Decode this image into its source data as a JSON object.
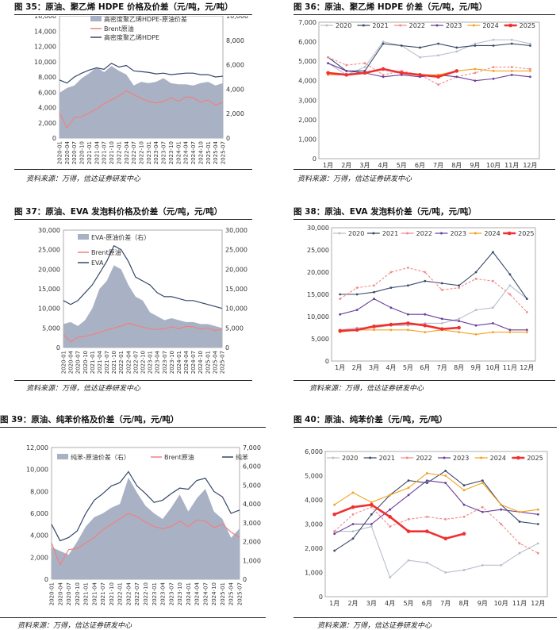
{
  "source_text": "资料来源：万得，信达证券研发中心",
  "months_series": [
    "2020-01",
    "2020-04",
    "2020-07",
    "2020-10",
    "2021-01",
    "2021-04",
    "2021-07",
    "2021-10",
    "2022-01",
    "2022-04",
    "2022-07",
    "2022-10",
    "2023-01",
    "2023-04",
    "2023-07",
    "2023-10",
    "2024-01",
    "2024-04",
    "2024-07",
    "2024-10",
    "2025-01",
    "2025-04",
    "2025-07"
  ],
  "month_labels": [
    "1月",
    "2月",
    "3月",
    "4月",
    "5月",
    "6月",
    "7月",
    "8月",
    "9月",
    "10月",
    "11月",
    "12月"
  ],
  "colors": {
    "y2020": "#b8bfcc",
    "y2021": "#3b4b6b",
    "y2022": "#f28a8a",
    "y2023": "#6a3d9a",
    "y2024": "#f5a020",
    "y2025": "#f03030",
    "area": "#a9b2c4",
    "brent": "#f08080",
    "line": "#34466a"
  },
  "chart_data": [
    {
      "id": "c35",
      "type": "area",
      "title": "图 35：原油、聚乙烯 HDPE 价格及价差（元/吨，元/吨）",
      "ylim": [
        0,
        16000
      ],
      "y2lim": [
        0,
        10000
      ],
      "left_ticks": [
        "0",
        "2,000",
        "4,000",
        "6,000",
        "8,000",
        "10,000",
        "12,000",
        "14,000",
        "16,000"
      ],
      "right_ticks": [
        "0",
        "2,000",
        "4,000",
        "6,000",
        "8,000",
        "10,000"
      ],
      "series": [
        {
          "name": "高密度聚乙烯HDPE-原油价差",
          "axis": "right",
          "kind": "area",
          "values": [
            3700,
            4100,
            4300,
            4900,
            5300,
            5800,
            5400,
            5900,
            5500,
            5200,
            4300,
            4600,
            4500,
            4600,
            4900,
            4500,
            4400,
            4400,
            4300,
            4500,
            4600,
            4300,
            4500
          ]
        },
        {
          "name": "Brent原油",
          "axis": "left",
          "kind": "line",
          "values": [
            3300,
            1300,
            2700,
            2800,
            3300,
            3800,
            4500,
            5000,
            5500,
            6200,
            5700,
            5200,
            4800,
            4600,
            4800,
            5300,
            4800,
            5400,
            5300,
            4700,
            5000,
            4300,
            4700
          ]
        },
        {
          "name": "高密度聚乙烯HDPE",
          "axis": "left",
          "kind": "line",
          "values": [
            7600,
            7200,
            8000,
            8500,
            8900,
            9200,
            9000,
            9800,
            9300,
            9500,
            8800,
            8700,
            8600,
            8400,
            8500,
            8300,
            8400,
            8500,
            8500,
            8300,
            8300,
            8000,
            8100
          ]
        }
      ]
    },
    {
      "id": "c36",
      "type": "line",
      "title": "图 36：原油、聚乙烯 HDPE 价差（元/吨，元/吨）",
      "ylim": [
        0,
        7000
      ],
      "ticks": [
        "0",
        "1,000",
        "2,000",
        "3,000",
        "4,000",
        "5,000",
        "6,000",
        "7,000"
      ],
      "series": [
        {
          "name": "2020",
          "values": [
            4900,
            4300,
            4700,
            6000,
            5800,
            5200,
            5300,
            5500,
            5900,
            6100,
            6100,
            5900
          ]
        },
        {
          "name": "2021",
          "values": [
            5200,
            4500,
            4500,
            5900,
            5800,
            5700,
            5900,
            5700,
            5800,
            5800,
            5900,
            5800
          ]
        },
        {
          "name": "2022",
          "values": [
            5200,
            4800,
            4900,
            4300,
            4500,
            4300,
            3800,
            4200,
            4400,
            4700,
            4700,
            4600
          ]
        },
        {
          "name": "2023",
          "values": [
            4900,
            4500,
            4400,
            4200,
            4300,
            4200,
            4300,
            4200,
            4000,
            4100,
            4300,
            4200
          ]
        },
        {
          "name": "2024",
          "values": [
            4300,
            4300,
            4400,
            4600,
            4400,
            4300,
            4300,
            4500,
            4600,
            4500,
            4500,
            4500
          ]
        },
        {
          "name": "2025",
          "values": [
            4400,
            4300,
            4400,
            4600,
            4400,
            4300,
            4200,
            4500
          ]
        }
      ]
    },
    {
      "id": "c37",
      "type": "area",
      "title": "图 37：原油、EVA 发泡料价格及价差（元/吨，元/吨）",
      "ylim": [
        0,
        30000
      ],
      "y2lim": [
        0,
        30000
      ],
      "left_ticks": [
        "0",
        "5,000",
        "10,000",
        "15,000",
        "20,000",
        "25,000",
        "30,000"
      ],
      "right_ticks": [
        "0",
        "5,000",
        "10,000",
        "15,000",
        "20,000",
        "25,000",
        "30,000"
      ],
      "series": [
        {
          "name": "EVA-原油价差（右）",
          "axis": "right",
          "kind": "area",
          "values": [
            6000,
            6500,
            5500,
            7000,
            10000,
            15000,
            17000,
            21000,
            20000,
            16000,
            13000,
            12000,
            9000,
            8000,
            7000,
            7500,
            7000,
            6500,
            6500,
            6000,
            6000,
            5500,
            5000
          ]
        },
        {
          "name": "Brent原油",
          "axis": "left",
          "kind": "line",
          "values": [
            3300,
            1400,
            2700,
            2800,
            3300,
            3800,
            4500,
            5000,
            5500,
            6200,
            5700,
            5200,
            4800,
            4600,
            4800,
            5300,
            4800,
            5400,
            5300,
            4700,
            5000,
            4300,
            4700
          ]
        },
        {
          "name": "EVA",
          "axis": "left",
          "kind": "line",
          "values": [
            12000,
            11000,
            12000,
            14000,
            16000,
            19000,
            22000,
            26000,
            25000,
            22000,
            18000,
            17000,
            16000,
            14000,
            13000,
            13000,
            12500,
            12000,
            12000,
            11500,
            11000,
            10500,
            10000
          ]
        }
      ]
    },
    {
      "id": "c38",
      "type": "line",
      "title": "图 38：原油、EVA 发泡料价差（元/吨，元/吨）",
      "ylim": [
        0,
        30000
      ],
      "ticks": [
        "0",
        "5,000",
        "10,000",
        "15,000",
        "20,000",
        "25,000",
        "30,000"
      ],
      "series": [
        {
          "name": "2020",
          "values": [
            7000,
            7500,
            7500,
            8000,
            8000,
            8500,
            8500,
            9500,
            11500,
            12000,
            17000,
            14000
          ]
        },
        {
          "name": "2021",
          "values": [
            15000,
            15000,
            15500,
            16500,
            17000,
            18000,
            17500,
            17000,
            20000,
            24500,
            19500,
            14000
          ]
        },
        {
          "name": "2022",
          "values": [
            14000,
            16500,
            17000,
            20000,
            21000,
            20000,
            16000,
            16500,
            18500,
            18000,
            15000,
            11000
          ]
        },
        {
          "name": "2023",
          "values": [
            10500,
            11500,
            14000,
            12000,
            10500,
            10500,
            9500,
            9000,
            8000,
            8500,
            7000,
            7000
          ]
        },
        {
          "name": "2024",
          "values": [
            6500,
            7000,
            7000,
            7000,
            7000,
            6500,
            7000,
            6500,
            6000,
            6500,
            6500,
            6500
          ]
        },
        {
          "name": "2025",
          "values": [
            6800,
            7000,
            7800,
            8200,
            8500,
            8000,
            7200,
            7500
          ]
        }
      ]
    },
    {
      "id": "c39",
      "type": "area",
      "title": "图 39：原油、纯苯价格及价差（元/吨，元/吨）",
      "ylim": [
        0,
        12000
      ],
      "y2lim": [
        0,
        7000
      ],
      "left_ticks": [
        "0",
        "2,000",
        "4,000",
        "6,000",
        "8,000",
        "10,000",
        "12,000"
      ],
      "right_ticks": [
        "0",
        "1,000",
        "2,000",
        "3,000",
        "4,000",
        "5,000",
        "6,000",
        "7,000"
      ],
      "series": [
        {
          "name": "纯苯-原油价差（右）",
          "axis": "right",
          "kind": "area",
          "values": [
            1700,
            1500,
            1300,
            2000,
            2800,
            3300,
            3500,
            3800,
            4000,
            5400,
            4600,
            3900,
            3500,
            3200,
            3800,
            4500,
            3600,
            4300,
            4800,
            3600,
            3200,
            2200,
            2700
          ]
        },
        {
          "name": "Brent原油",
          "axis": "left",
          "kind": "line",
          "values": [
            3300,
            1300,
            2700,
            2800,
            3300,
            3800,
            4500,
            5000,
            5500,
            6000,
            5700,
            5200,
            4800,
            4600,
            4800,
            5300,
            4800,
            5400,
            5300,
            4700,
            5000,
            4300,
            3800
          ]
        },
        {
          "name": "纯苯",
          "axis": "left",
          "kind": "line",
          "values": [
            5000,
            3500,
            3800,
            4400,
            6000,
            7200,
            7800,
            8500,
            8800,
            9800,
            8500,
            7800,
            7000,
            7200,
            7800,
            8300,
            8200,
            9000,
            9200,
            8000,
            7500,
            6000,
            6300
          ]
        }
      ]
    },
    {
      "id": "c40",
      "type": "line",
      "title": "图 40：原油、纯苯价差（元/吨，元/吨）",
      "ylim": [
        0,
        6000
      ],
      "ticks": [
        "0",
        "1,000",
        "2,000",
        "3,000",
        "4,000",
        "5,000",
        "6,000"
      ],
      "series": [
        {
          "name": "2020",
          "values": [
            2700,
            2700,
            2900,
            800,
            1500,
            1400,
            1000,
            1100,
            1300,
            1300,
            1800,
            2200
          ]
        },
        {
          "name": "2021",
          "values": [
            1900,
            2400,
            3400,
            4200,
            4800,
            4700,
            5200,
            4600,
            4800,
            3800,
            3100,
            3000
          ]
        },
        {
          "name": "2022",
          "values": [
            2700,
            3400,
            3700,
            2900,
            3200,
            3300,
            3200,
            3300,
            3700,
            3000,
            2200,
            1800
          ]
        },
        {
          "name": "2023",
          "values": [
            2600,
            3000,
            3000,
            3600,
            4200,
            4800,
            4700,
            3800,
            3500,
            3600,
            3500,
            3400
          ]
        },
        {
          "name": "2024",
          "values": [
            3800,
            4300,
            3900,
            4200,
            4500,
            5100,
            5000,
            4400,
            4700,
            3800,
            3500,
            3600
          ]
        },
        {
          "name": "2025",
          "values": [
            3400,
            3700,
            3800,
            3300,
            2700,
            2700,
            2400,
            2600
          ]
        }
      ]
    }
  ]
}
